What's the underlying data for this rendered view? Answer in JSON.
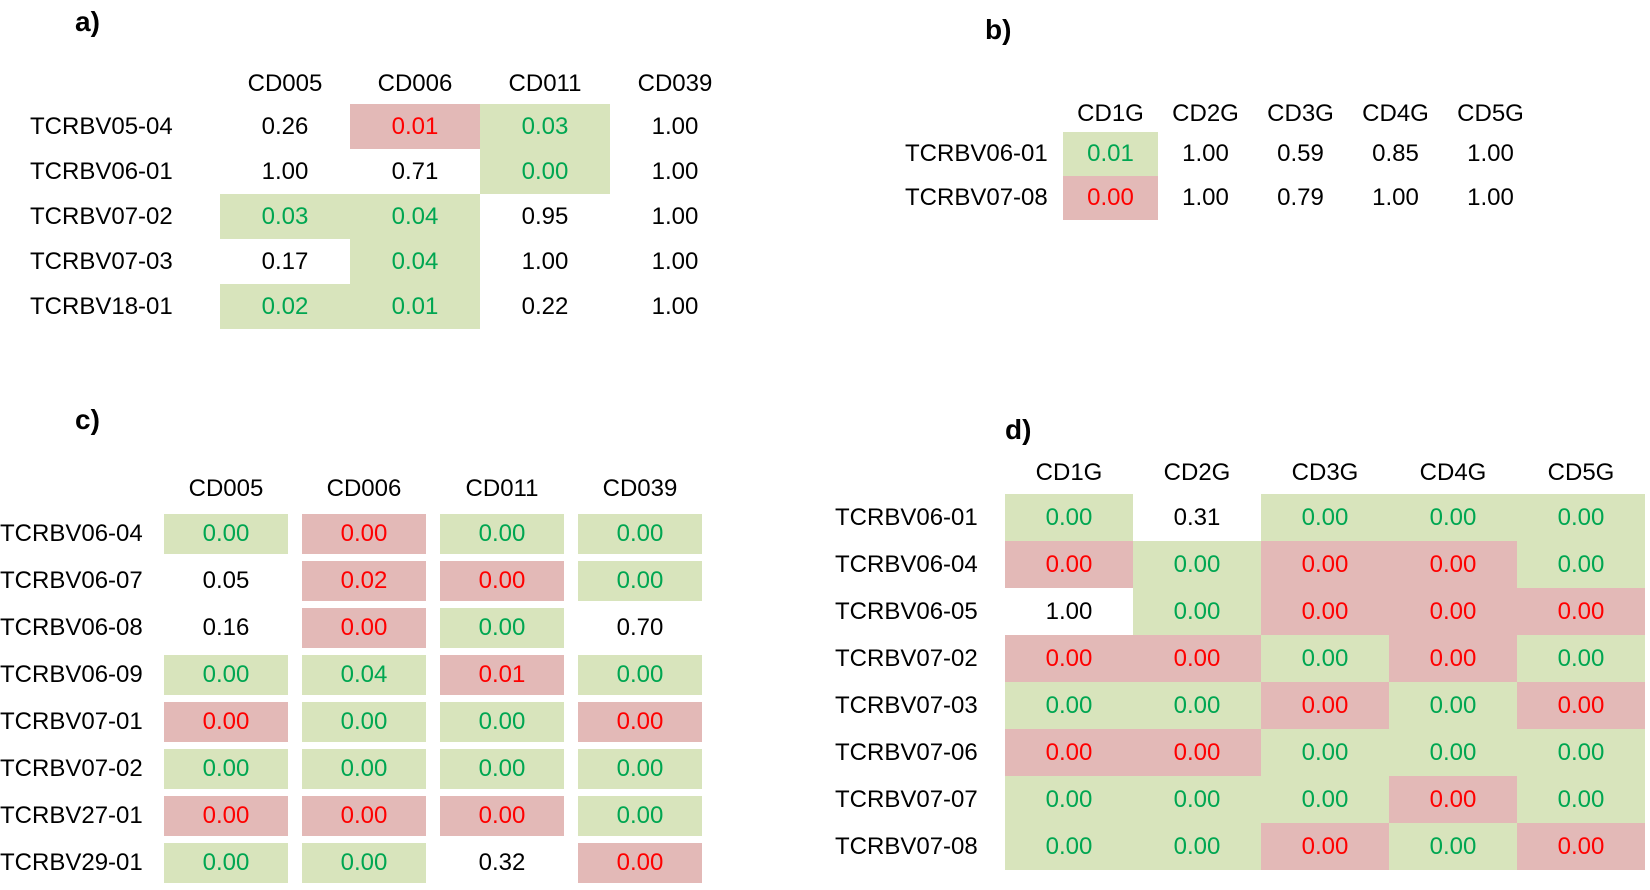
{
  "colors": {
    "green_bg": "#d8e4bc",
    "red_bg": "#e3b9b7",
    "green_text": "#00a651",
    "red_text": "#fe0000",
    "black_text": "#000000",
    "page_bg": "#ffffff"
  },
  "cell_style_legend": {
    "plain": "black text on white background",
    "green": "green text on light-green background",
    "red": "red text on light-red background"
  },
  "chart_data": [
    {
      "type": "table",
      "panel": "a",
      "title": "a)",
      "columns": [
        "CD005",
        "CD006",
        "CD011",
        "CD039"
      ],
      "rows": [
        {
          "name": "TCRBV05-04",
          "cells": [
            [
              "0.26",
              "plain"
            ],
            [
              "0.01",
              "red"
            ],
            [
              "0.03",
              "green"
            ],
            [
              "1.00",
              "plain"
            ]
          ]
        },
        {
          "name": "TCRBV06-01",
          "cells": [
            [
              "1.00",
              "plain"
            ],
            [
              "0.71",
              "plain"
            ],
            [
              "0.00",
              "green"
            ],
            [
              "1.00",
              "plain"
            ]
          ]
        },
        {
          "name": "TCRBV07-02",
          "cells": [
            [
              "0.03",
              "green"
            ],
            [
              "0.04",
              "green"
            ],
            [
              "0.95",
              "plain"
            ],
            [
              "1.00",
              "plain"
            ]
          ]
        },
        {
          "name": "TCRBV07-03",
          "cells": [
            [
              "0.17",
              "plain"
            ],
            [
              "0.04",
              "green"
            ],
            [
              "1.00",
              "plain"
            ],
            [
              "1.00",
              "plain"
            ]
          ]
        },
        {
          "name": "TCRBV18-01",
          "cells": [
            [
              "0.02",
              "green"
            ],
            [
              "0.01",
              "green"
            ],
            [
              "0.22",
              "plain"
            ],
            [
              "1.00",
              "plain"
            ]
          ]
        }
      ]
    },
    {
      "type": "table",
      "panel": "b",
      "title": "b)",
      "columns": [
        "CD1G",
        "CD2G",
        "CD3G",
        "CD4G",
        "CD5G"
      ],
      "rows": [
        {
          "name": "TCRBV06-01",
          "cells": [
            [
              "0.01",
              "green"
            ],
            [
              "1.00",
              "plain"
            ],
            [
              "0.59",
              "plain"
            ],
            [
              "0.85",
              "plain"
            ],
            [
              "1.00",
              "plain"
            ]
          ]
        },
        {
          "name": "TCRBV07-08",
          "cells": [
            [
              "0.00",
              "red"
            ],
            [
              "1.00",
              "plain"
            ],
            [
              "0.79",
              "plain"
            ],
            [
              "1.00",
              "plain"
            ],
            [
              "1.00",
              "plain"
            ]
          ]
        }
      ]
    },
    {
      "type": "table",
      "panel": "c",
      "title": "c)",
      "columns": [
        "CD005",
        "CD006",
        "CD011",
        "CD039"
      ],
      "rows": [
        {
          "name": "TCRBV06-04",
          "cells": [
            [
              "0.00",
              "green"
            ],
            [
              "0.00",
              "red"
            ],
            [
              "0.00",
              "green"
            ],
            [
              "0.00",
              "green"
            ]
          ]
        },
        {
          "name": "TCRBV06-07",
          "cells": [
            [
              "0.05",
              "plain"
            ],
            [
              "0.02",
              "red"
            ],
            [
              "0.00",
              "red"
            ],
            [
              "0.00",
              "green"
            ]
          ]
        },
        {
          "name": "TCRBV06-08",
          "cells": [
            [
              "0.16",
              "plain"
            ],
            [
              "0.00",
              "red"
            ],
            [
              "0.00",
              "green"
            ],
            [
              "0.70",
              "plain"
            ]
          ]
        },
        {
          "name": "TCRBV06-09",
          "cells": [
            [
              "0.00",
              "green"
            ],
            [
              "0.04",
              "green"
            ],
            [
              "0.01",
              "red"
            ],
            [
              "0.00",
              "green"
            ]
          ]
        },
        {
          "name": "TCRBV07-01",
          "cells": [
            [
              "0.00",
              "red"
            ],
            [
              "0.00",
              "green"
            ],
            [
              "0.00",
              "green"
            ],
            [
              "0.00",
              "red"
            ]
          ]
        },
        {
          "name": "TCRBV07-02",
          "cells": [
            [
              "0.00",
              "green"
            ],
            [
              "0.00",
              "green"
            ],
            [
              "0.00",
              "green"
            ],
            [
              "0.00",
              "green"
            ]
          ]
        },
        {
          "name": "TCRBV27-01",
          "cells": [
            [
              "0.00",
              "red"
            ],
            [
              "0.00",
              "red"
            ],
            [
              "0.00",
              "red"
            ],
            [
              "0.00",
              "green"
            ]
          ]
        },
        {
          "name": "TCRBV29-01",
          "cells": [
            [
              "0.00",
              "green"
            ],
            [
              "0.00",
              "green"
            ],
            [
              "0.32",
              "plain"
            ],
            [
              "0.00",
              "red"
            ]
          ]
        }
      ]
    },
    {
      "type": "table",
      "panel": "d",
      "title": "d)",
      "columns": [
        "CD1G",
        "CD2G",
        "CD3G",
        "CD4G",
        "CD5G"
      ],
      "rows": [
        {
          "name": "TCRBV06-01",
          "cells": [
            [
              "0.00",
              "green"
            ],
            [
              "0.31",
              "plain"
            ],
            [
              "0.00",
              "green"
            ],
            [
              "0.00",
              "green"
            ],
            [
              "0.00",
              "green"
            ]
          ]
        },
        {
          "name": "TCRBV06-04",
          "cells": [
            [
              "0.00",
              "red"
            ],
            [
              "0.00",
              "green"
            ],
            [
              "0.00",
              "red"
            ],
            [
              "0.00",
              "red"
            ],
            [
              "0.00",
              "green"
            ]
          ]
        },
        {
          "name": "TCRBV06-05",
          "cells": [
            [
              "1.00",
              "plain"
            ],
            [
              "0.00",
              "green"
            ],
            [
              "0.00",
              "red"
            ],
            [
              "0.00",
              "red"
            ],
            [
              "0.00",
              "red"
            ]
          ]
        },
        {
          "name": "TCRBV07-02",
          "cells": [
            [
              "0.00",
              "red"
            ],
            [
              "0.00",
              "red"
            ],
            [
              "0.00",
              "green"
            ],
            [
              "0.00",
              "red"
            ],
            [
              "0.00",
              "green"
            ]
          ]
        },
        {
          "name": "TCRBV07-03",
          "cells": [
            [
              "0.00",
              "green"
            ],
            [
              "0.00",
              "green"
            ],
            [
              "0.00",
              "red"
            ],
            [
              "0.00",
              "green"
            ],
            [
              "0.00",
              "red"
            ]
          ]
        },
        {
          "name": "TCRBV07-06",
          "cells": [
            [
              "0.00",
              "red"
            ],
            [
              "0.00",
              "red"
            ],
            [
              "0.00",
              "green"
            ],
            [
              "0.00",
              "green"
            ],
            [
              "0.00",
              "green"
            ]
          ]
        },
        {
          "name": "TCRBV07-07",
          "cells": [
            [
              "0.00",
              "green"
            ],
            [
              "0.00",
              "green"
            ],
            [
              "0.00",
              "green"
            ],
            [
              "0.00",
              "red"
            ],
            [
              "0.00",
              "green"
            ]
          ]
        },
        {
          "name": "TCRBV07-08",
          "cells": [
            [
              "0.00",
              "green"
            ],
            [
              "0.00",
              "green"
            ],
            [
              "0.00",
              "red"
            ],
            [
              "0.00",
              "green"
            ],
            [
              "0.00",
              "red"
            ]
          ]
        }
      ]
    }
  ]
}
